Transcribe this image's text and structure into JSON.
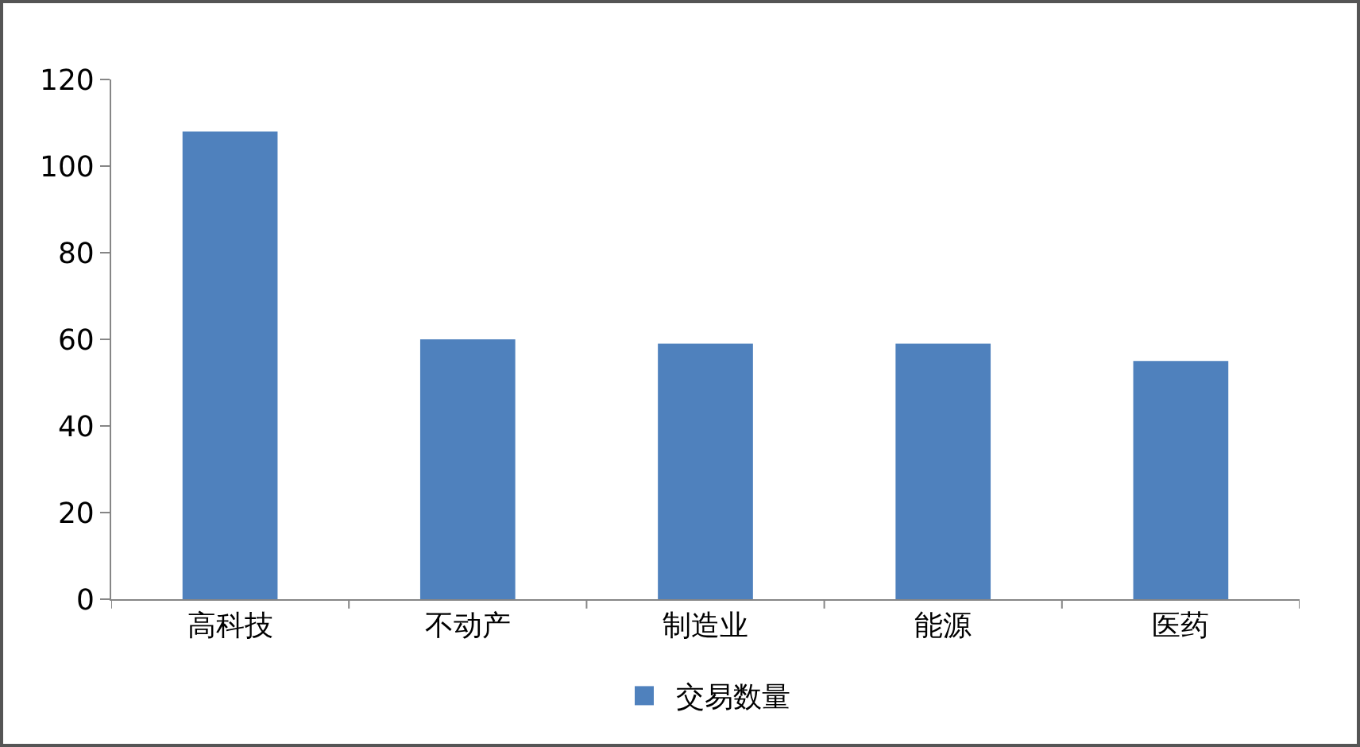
{
  "chart_data": {
    "type": "bar",
    "categories": [
      "高科技",
      "不动产",
      "制造业",
      "能源",
      "医药"
    ],
    "series": [
      {
        "name": "交易数量",
        "color": "#4f81bd",
        "values": [
          108,
          60,
          59,
          59,
          55
        ]
      }
    ],
    "ylim": [
      0,
      120
    ],
    "yticks": [
      0,
      20,
      40,
      60,
      80,
      100,
      120
    ],
    "grid": false,
    "legend": "bottom"
  }
}
